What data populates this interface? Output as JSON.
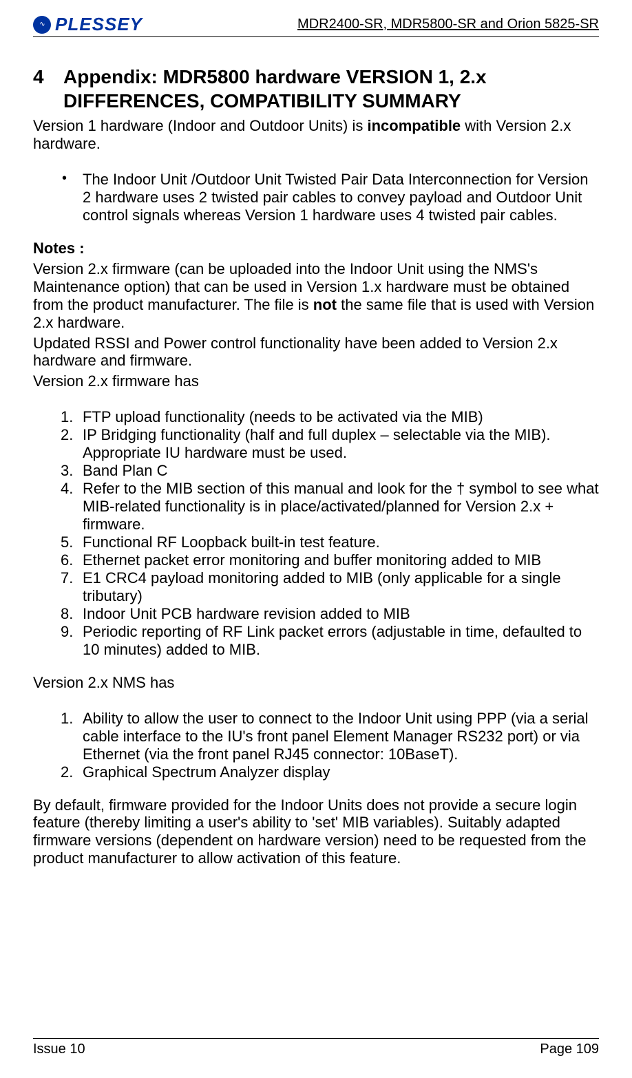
{
  "header": {
    "logo_text": "PLESSEY",
    "right_text": "MDR2400-SR, MDR5800-SR and Orion 5825-SR"
  },
  "section": {
    "number": "4",
    "title_line1": "Appendix: MDR5800 hardware VERSION 1, 2.x",
    "title_line2": "DIFFERENCES, COMPATIBILITY SUMMARY"
  },
  "intro": {
    "p1_a": "Version 1 hardware (Indoor and Outdoor Units) is ",
    "p1_bold": "incompatible",
    "p1_b": " with Version 2.x hardware."
  },
  "bullet": {
    "b1": "The Indoor Unit /Outdoor Unit Twisted Pair Data Interconnection for Version 2 hardware uses 2 twisted pair cables to convey payload and Outdoor Unit control signals whereas Version 1 hardware uses 4 twisted pair cables."
  },
  "notes": {
    "label": "Notes :",
    "p1_a": "Version 2.x firmware (can be uploaded into the Indoor Unit using the NMS's Maintenance option) that can be used in Version 1.x hardware must be obtained from the product manufacturer.  The file is ",
    "p1_bold": "not",
    "p1_b": " the same file that is used with Version 2.x hardware.",
    "p2": "Updated RSSI and Power control functionality have been added to Version 2.x hardware and firmware.",
    "p3": "Version 2.x firmware has"
  },
  "firmware_list": {
    "i1": "FTP upload functionality (needs to be activated via the MIB)",
    "i2": "IP Bridging functionality (half and full duplex – selectable via the MIB).  Appropriate IU hardware must be used.",
    "i3": "Band Plan C",
    "i4": "Refer to the MIB section of this manual and look for the † symbol to see what MIB-related functionality is in place/activated/planned for Version 2.x + firmware.",
    "i5": "Functional RF Loopback built-in test feature.",
    "i6": "Ethernet packet error monitoring and buffer monitoring added to MIB",
    "i7": "E1 CRC4 payload monitoring added to MIB (only applicable for a single tributary)",
    "i8": "Indoor Unit PCB hardware revision added to MIB",
    "i9": "Periodic reporting of RF Link packet errors (adjustable in time, defaulted to 10 minutes) added to MIB."
  },
  "nms_intro": "Version 2.x NMS has",
  "nms_list": {
    "i1": "Ability to allow the user to connect to the Indoor Unit using PPP (via a serial cable interface to the IU's front panel Element Manager RS232 port) or via Ethernet (via the front panel RJ45 connector: 10BaseT).",
    "i2": "Graphical Spectrum Analyzer display"
  },
  "closing": "By default, firmware provided for the Indoor Units does not provide a secure login feature (thereby limiting a user's ability to 'set' MIB variables).  Suitably adapted firmware versions (dependent on hardware version) need to be requested from the product manufacturer to allow activation of this feature.",
  "footer": {
    "left": "Issue 10",
    "right": "Page 109"
  }
}
